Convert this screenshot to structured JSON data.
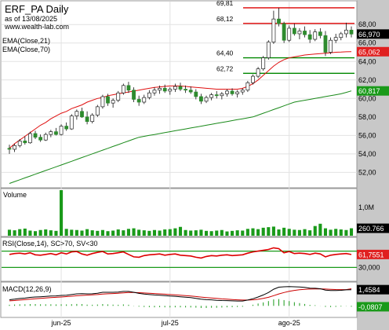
{
  "header": {
    "symbol_line": "ERF_PA Daily",
    "asof": "as of 13/08/2025",
    "site": "www.wealth-lab.com"
  },
  "colors": {
    "candle_body": "#2e8b2e",
    "candle_wick": "#111111",
    "ema_fast": "#e01010",
    "ema_slow": "#1a8a1a",
    "resistance": "#dd0000",
    "support": "#008800",
    "volume_bar": "#1a9a1a",
    "rsi_line": "#dd0000",
    "macd_line": "#000000",
    "macd_signal": "#cc0000",
    "macd_hist": "#1a9a1a",
    "price_tag_ema_fast": "#e02020",
    "price_tag_ema_slow": "#1a9a1a",
    "price_tag_volume": "#000000",
    "price_tag_rsi": "#e02020",
    "price_tag_macd": "#000000",
    "axis_panel": "#c8c8c8"
  },
  "chart_data": [
    {
      "type": "candlestick",
      "panel": "price",
      "indicators": [
        "EMA(Close,21)",
        "EMA(Close,70)"
      ],
      "ylim": [
        50.5,
        70.4
      ],
      "y_ticks": [
        52,
        54,
        56,
        58,
        60,
        62,
        64,
        66,
        68
      ],
      "x_ticks": [
        {
          "label": "jun-25",
          "date": "2025-06-02"
        },
        {
          "label": "jul-25",
          "date": "2025-07-01"
        },
        {
          "label": "ago-25",
          "date": "2025-08-01"
        }
      ],
      "levels": [
        {
          "value": 69.81,
          "label": "69,81",
          "kind": "resistance"
        },
        {
          "value": 68.12,
          "label": "68,12",
          "kind": "resistance"
        },
        {
          "value": 64.4,
          "label": "64,40",
          "kind": "support"
        },
        {
          "value": 62.72,
          "label": "62,72",
          "kind": "support"
        }
      ],
      "last_values": {
        "close": {
          "value": 66.97,
          "label": "66,970"
        },
        "ema21": {
          "value": 65.062,
          "label": "65,062"
        },
        "ema70": {
          "value": 60.817,
          "label": "60,817"
        }
      },
      "ohlc": [
        [
          54.6,
          55.0,
          54.0,
          54.5
        ],
        [
          54.5,
          55.1,
          54.2,
          54.9
        ],
        [
          54.9,
          55.6,
          54.7,
          55.4
        ],
        [
          55.4,
          55.9,
          55.0,
          55.2
        ],
        [
          55.2,
          56.4,
          55.1,
          56.2
        ],
        [
          56.2,
          56.5,
          55.6,
          55.8
        ],
        [
          55.8,
          56.1,
          55.3,
          55.5
        ],
        [
          55.5,
          56.3,
          55.4,
          56.1
        ],
        [
          56.1,
          56.6,
          55.8,
          56.4
        ],
        [
          56.4,
          56.8,
          56.0,
          56.1
        ],
        [
          56.1,
          57.2,
          56.0,
          57.0
        ],
        [
          57.0,
          57.4,
          56.5,
          56.7
        ],
        [
          56.7,
          58.3,
          56.6,
          58.1
        ],
        [
          58.1,
          58.8,
          57.7,
          58.6
        ],
        [
          58.6,
          59.0,
          57.9,
          58.0
        ],
        [
          58.0,
          58.6,
          57.2,
          57.5
        ],
        [
          57.5,
          58.4,
          57.3,
          58.2
        ],
        [
          58.2,
          59.3,
          58.0,
          59.1
        ],
        [
          59.1,
          60.4,
          58.9,
          60.2
        ],
        [
          60.2,
          60.5,
          59.2,
          59.5
        ],
        [
          59.5,
          60.0,
          59.0,
          59.8
        ],
        [
          59.8,
          60.8,
          59.6,
          60.6
        ],
        [
          60.6,
          61.6,
          60.4,
          61.4
        ],
        [
          61.4,
          61.8,
          60.6,
          60.9
        ],
        [
          60.9,
          61.2,
          59.6,
          59.9
        ],
        [
          59.9,
          60.3,
          59.2,
          59.6
        ],
        [
          59.6,
          60.4,
          59.4,
          60.1
        ],
        [
          60.1,
          60.9,
          59.9,
          60.6
        ],
        [
          60.6,
          61.2,
          60.3,
          60.9
        ],
        [
          60.9,
          61.4,
          60.5,
          61.1
        ],
        [
          61.1,
          61.5,
          60.6,
          60.8
        ],
        [
          60.8,
          61.2,
          60.4,
          61.0
        ],
        [
          61.0,
          61.6,
          60.7,
          61.3
        ],
        [
          61.3,
          61.7,
          60.8,
          61.0
        ],
        [
          61.0,
          61.4,
          60.6,
          60.9
        ],
        [
          60.9,
          61.3,
          60.5,
          60.7
        ],
        [
          60.7,
          61.0,
          59.9,
          60.2
        ],
        [
          60.2,
          60.5,
          59.4,
          59.7
        ],
        [
          59.7,
          60.3,
          59.5,
          60.1
        ],
        [
          60.1,
          60.6,
          59.8,
          60.4
        ],
        [
          60.4,
          60.8,
          60.0,
          60.3
        ],
        [
          60.3,
          60.7,
          59.9,
          60.5
        ],
        [
          60.5,
          61.0,
          60.2,
          60.8
        ],
        [
          60.8,
          61.1,
          60.3,
          60.5
        ],
        [
          60.5,
          60.9,
          60.1,
          60.7
        ],
        [
          60.7,
          61.1,
          60.4,
          60.9
        ],
        [
          60.9,
          61.9,
          60.7,
          61.7
        ],
        [
          61.7,
          62.6,
          61.5,
          62.4
        ],
        [
          62.4,
          63.4,
          62.2,
          63.2
        ],
        [
          63.2,
          64.6,
          63.0,
          64.4
        ],
        [
          64.4,
          66.3,
          64.2,
          66.1
        ],
        [
          66.1,
          69.5,
          65.9,
          68.6
        ],
        [
          68.6,
          69.8,
          67.8,
          68.1
        ],
        [
          68.1,
          68.3,
          66.0,
          66.3
        ],
        [
          66.3,
          67.9,
          66.1,
          67.6
        ],
        [
          67.6,
          68.1,
          66.8,
          67.0
        ],
        [
          67.0,
          67.6,
          66.4,
          67.3
        ],
        [
          67.3,
          67.8,
          66.6,
          66.9
        ],
        [
          66.9,
          67.4,
          66.0,
          66.4
        ],
        [
          66.4,
          67.5,
          66.2,
          67.2
        ],
        [
          67.2,
          67.6,
          66.5,
          66.8
        ],
        [
          66.8,
          67.3,
          64.6,
          65.0
        ],
        [
          65.0,
          66.6,
          64.8,
          66.3
        ],
        [
          66.3,
          67.0,
          66.0,
          66.6
        ],
        [
          66.6,
          67.2,
          66.3,
          67.0
        ],
        [
          67.0,
          68.2,
          66.6,
          67.4
        ],
        [
          67.4,
          67.8,
          66.6,
          66.97
        ]
      ],
      "ema21": [
        54.6,
        55.1,
        55.5,
        55.9,
        56.3,
        56.7,
        57.1,
        57.4,
        57.8,
        58.1,
        58.4,
        58.6,
        58.9,
        59.1,
        59.3,
        59.6,
        59.8,
        60.0,
        60.1,
        60.3,
        60.4,
        60.5,
        60.6,
        60.7,
        60.8,
        60.9,
        61.0,
        61.1,
        61.2,
        61.25,
        61.3,
        61.35,
        61.35,
        61.35,
        61.3,
        61.25,
        61.2,
        61.15,
        61.1,
        61.05,
        61.0,
        61.0,
        61.0,
        61.0,
        61.0,
        61.1,
        61.3,
        61.6,
        62.0,
        62.5,
        63.0,
        63.5,
        63.9,
        64.2,
        64.4,
        64.5,
        64.6,
        64.7,
        64.75,
        64.8,
        64.85,
        64.9,
        64.95,
        65.0,
        65.02,
        65.05,
        65.062
      ],
      "ema70": [
        50.8,
        51.0,
        51.2,
        51.4,
        51.6,
        51.8,
        52.0,
        52.2,
        52.4,
        52.6,
        52.8,
        53.0,
        53.2,
        53.4,
        53.6,
        53.8,
        54.0,
        54.2,
        54.4,
        54.6,
        54.8,
        55.0,
        55.2,
        55.4,
        55.6,
        55.8,
        55.9,
        56.0,
        56.1,
        56.2,
        56.3,
        56.4,
        56.5,
        56.6,
        56.7,
        56.8,
        56.9,
        57.0,
        57.1,
        57.2,
        57.3,
        57.4,
        57.5,
        57.6,
        57.7,
        57.8,
        57.9,
        58.0,
        58.2,
        58.4,
        58.6,
        58.8,
        59.0,
        59.2,
        59.4,
        59.6,
        59.7,
        59.8,
        59.9,
        60.0,
        60.1,
        60.2,
        60.3,
        60.4,
        60.5,
        60.65,
        60.817
      ]
    },
    {
      "type": "bar",
      "panel": "volume",
      "title": "Volume",
      "ylim": [
        0,
        1600000
      ],
      "y_ticks": [
        {
          "value": 1000000,
          "label": "1,0M"
        }
      ],
      "last_value": {
        "value": 260766,
        "label": "260.766"
      },
      "values": [
        210000,
        190000,
        230000,
        250000,
        180000,
        160000,
        200000,
        220000,
        190000,
        170000,
        1600000,
        240000,
        210000,
        200000,
        180000,
        230000,
        190000,
        170000,
        200000,
        160000,
        180000,
        220000,
        190000,
        240000,
        260000,
        210000,
        190000,
        170000,
        200000,
        180000,
        220000,
        230000,
        260000,
        310000,
        200000,
        180000,
        190000,
        210000,
        170000,
        160000,
        180000,
        200000,
        150000,
        170000,
        190000,
        180000,
        240000,
        260000,
        230000,
        280000,
        300000,
        320000,
        220000,
        280000,
        240000,
        210000,
        200000,
        230000,
        190000,
        340000,
        420000,
        260000,
        210000,
        240000,
        220000,
        200000,
        260766
      ]
    },
    {
      "type": "line",
      "panel": "rsi",
      "title": "RSI(Close,14), SC>70, SV<30",
      "ylim": [
        0,
        100
      ],
      "y_ticks": [
        {
          "value": 30,
          "label": "30,000"
        }
      ],
      "levels": [
        70,
        30
      ],
      "last_value": {
        "value": 61.7551,
        "label": "61,7551"
      },
      "values": [
        62,
        64,
        65,
        63,
        66,
        61,
        60,
        62,
        64,
        61,
        66,
        63,
        68,
        69,
        63,
        60,
        64,
        67,
        69,
        63,
        64,
        66,
        68,
        62,
        56,
        55,
        59,
        61,
        62,
        63,
        60,
        62,
        63,
        60,
        59,
        58,
        55,
        53,
        57,
        59,
        58,
        60,
        61,
        59,
        60,
        61,
        65,
        68,
        70,
        72,
        74,
        78,
        76,
        66,
        69,
        64,
        65,
        64,
        62,
        65,
        63,
        56,
        60,
        62,
        63,
        64,
        61.7551
      ]
    },
    {
      "type": "line",
      "panel": "macd",
      "title": "MACD(12,26,9)",
      "ylim": [
        -0.9,
        2.0
      ],
      "last_values": {
        "macd": {
          "value": 1.4584,
          "label": "1,4584"
        },
        "hist": {
          "value": -0.0807,
          "label": "-0,0807"
        }
      },
      "macd": [
        0.55,
        0.6,
        0.66,
        0.7,
        0.76,
        0.8,
        0.82,
        0.85,
        0.88,
        0.9,
        0.94,
        0.96,
        1.02,
        1.08,
        1.1,
        1.08,
        1.09,
        1.14,
        1.22,
        1.22,
        1.22,
        1.24,
        1.3,
        1.3,
        1.22,
        1.12,
        1.06,
        1.02,
        0.98,
        0.96,
        0.92,
        0.88,
        0.86,
        0.82,
        0.78,
        0.74,
        0.68,
        0.6,
        0.56,
        0.54,
        0.5,
        0.48,
        0.47,
        0.45,
        0.44,
        0.44,
        0.52,
        0.64,
        0.8,
        0.98,
        1.2,
        1.5,
        1.68,
        1.72,
        1.74,
        1.72,
        1.7,
        1.66,
        1.6,
        1.58,
        1.54,
        1.42,
        1.38,
        1.38,
        1.4,
        1.44,
        1.4584
      ],
      "signal": [
        0.45,
        0.48,
        0.52,
        0.56,
        0.6,
        0.64,
        0.68,
        0.71,
        0.74,
        0.77,
        0.8,
        0.83,
        0.87,
        0.91,
        0.94,
        0.97,
        0.99,
        1.02,
        1.06,
        1.09,
        1.11,
        1.14,
        1.17,
        1.2,
        1.2,
        1.19,
        1.16,
        1.14,
        1.11,
        1.08,
        1.05,
        1.02,
        0.99,
        0.95,
        0.92,
        0.88,
        0.84,
        0.79,
        0.75,
        0.71,
        0.67,
        0.63,
        0.6,
        0.57,
        0.54,
        0.52,
        0.52,
        0.54,
        0.59,
        0.67,
        0.77,
        0.92,
        1.07,
        1.2,
        1.31,
        1.39,
        1.45,
        1.49,
        1.51,
        1.52,
        1.53,
        1.51,
        1.49,
        1.47,
        1.46,
        1.46,
        1.5391
      ],
      "hist": [
        0.1,
        0.12,
        0.14,
        0.14,
        0.16,
        0.16,
        0.14,
        0.14,
        0.14,
        0.13,
        0.14,
        0.13,
        0.15,
        0.17,
        0.16,
        0.11,
        0.1,
        0.12,
        0.16,
        0.13,
        0.11,
        0.1,
        0.13,
        0.1,
        0.02,
        -0.07,
        -0.1,
        -0.12,
        -0.13,
        -0.12,
        -0.13,
        -0.14,
        -0.13,
        -0.13,
        -0.14,
        -0.14,
        -0.16,
        -0.19,
        -0.19,
        -0.17,
        -0.17,
        -0.15,
        -0.13,
        -0.12,
        -0.1,
        -0.08,
        0.0,
        0.1,
        0.21,
        0.31,
        0.43,
        0.58,
        0.61,
        0.52,
        0.43,
        0.33,
        0.25,
        0.17,
        0.09,
        0.06,
        0.01,
        -0.09,
        -0.11,
        -0.09,
        -0.06,
        -0.02,
        -0.0807
      ]
    }
  ]
}
